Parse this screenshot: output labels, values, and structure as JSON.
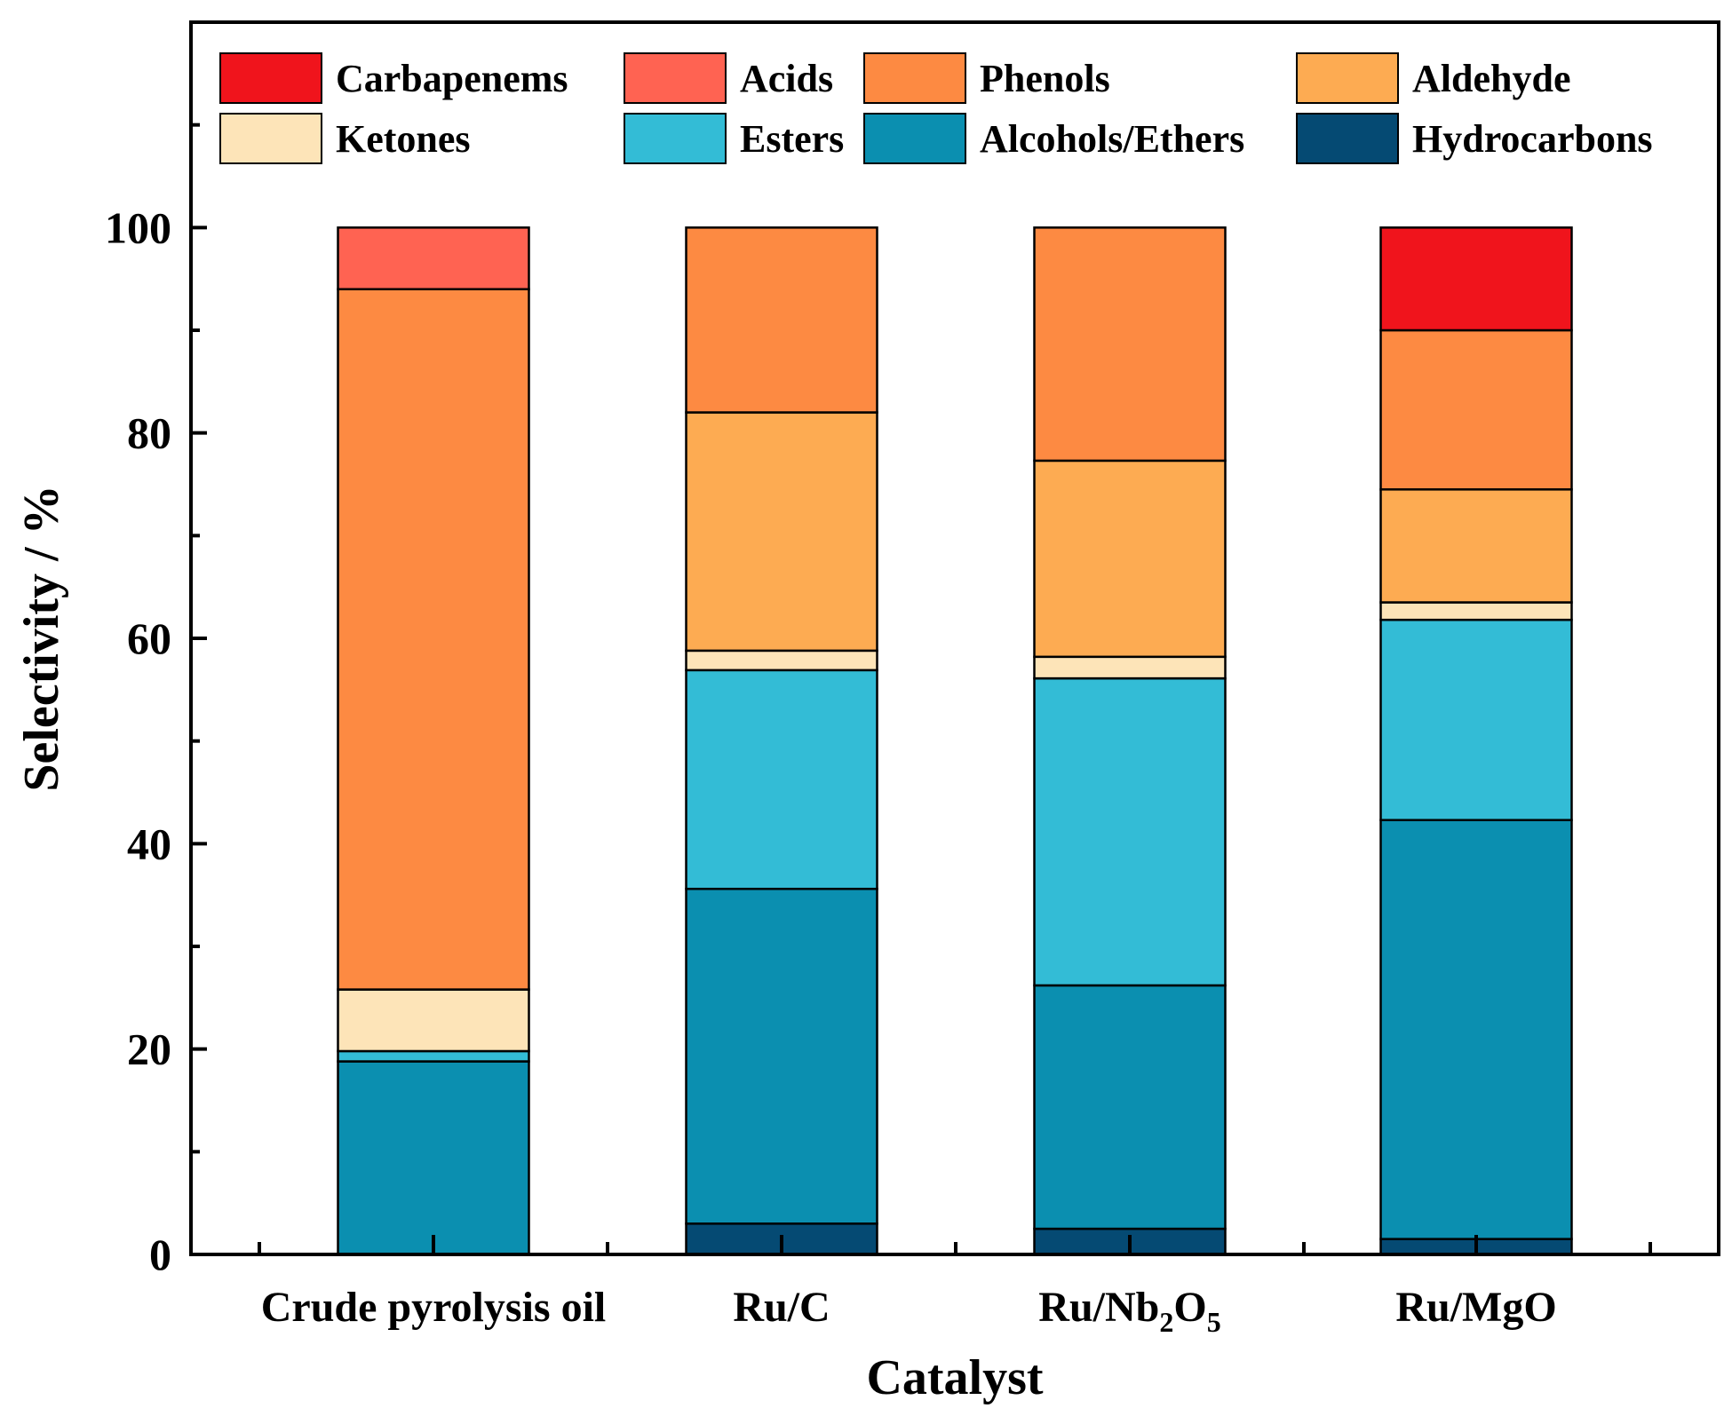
{
  "chart_data": {
    "type": "bar",
    "stacked": true,
    "xlabel": "Catalyst",
    "ylabel": "Selectivity / %",
    "ylim": [
      0,
      120
    ],
    "yticks": [
      0,
      20,
      40,
      60,
      80,
      100
    ],
    "categories": [
      "Crude pyrolysis oil",
      "Ru/C",
      "Ru/Nb2O5",
      "Ru/MgO"
    ],
    "category_labels": [
      [
        {
          "t": "Crude pyrolysis oil"
        }
      ],
      [
        {
          "t": "Ru/C"
        }
      ],
      [
        {
          "t": "Ru/Nb"
        },
        {
          "t": "2",
          "sub": true
        },
        {
          "t": "O"
        },
        {
          "t": "5",
          "sub": true
        }
      ],
      [
        {
          "t": "Ru/MgO"
        }
      ]
    ],
    "series": [
      {
        "name": "Hydrocarbons",
        "color": "#054a73",
        "values": [
          0,
          3.0,
          2.5,
          1.5
        ]
      },
      {
        "name": "Alcohols/Ethers",
        "color": "#0b8fb0",
        "values": [
          18.8,
          32.6,
          23.7,
          40.8
        ]
      },
      {
        "name": "Esters",
        "color": "#33bcd6",
        "values": [
          1.0,
          21.3,
          29.9,
          19.5
        ]
      },
      {
        "name": "Ketones",
        "color": "#fde4b8",
        "values": [
          6.0,
          1.9,
          2.1,
          1.7
        ]
      },
      {
        "name": "Aldehyde",
        "color": "#fdab52",
        "values": [
          0,
          23.2,
          19.1,
          11.0
        ]
      },
      {
        "name": "Phenols",
        "color": "#fd8a42",
        "values": [
          68.2,
          18.0,
          22.7,
          15.5
        ]
      },
      {
        "name": "Acids",
        "color": "#ff6352",
        "values": [
          6.0,
          0,
          0,
          0
        ]
      },
      {
        "name": "Carbapenems",
        "color": "#f0141c",
        "values": [
          0,
          0,
          0,
          10.0
        ]
      }
    ],
    "legend": {
      "placement": "top",
      "rows": [
        [
          "Carbapenems",
          "Acids",
          "Phenols",
          "Aldehyde"
        ],
        [
          "Ketones",
          "Esters",
          "Alcohols/Ethers",
          "Hydrocarbons"
        ]
      ]
    }
  }
}
